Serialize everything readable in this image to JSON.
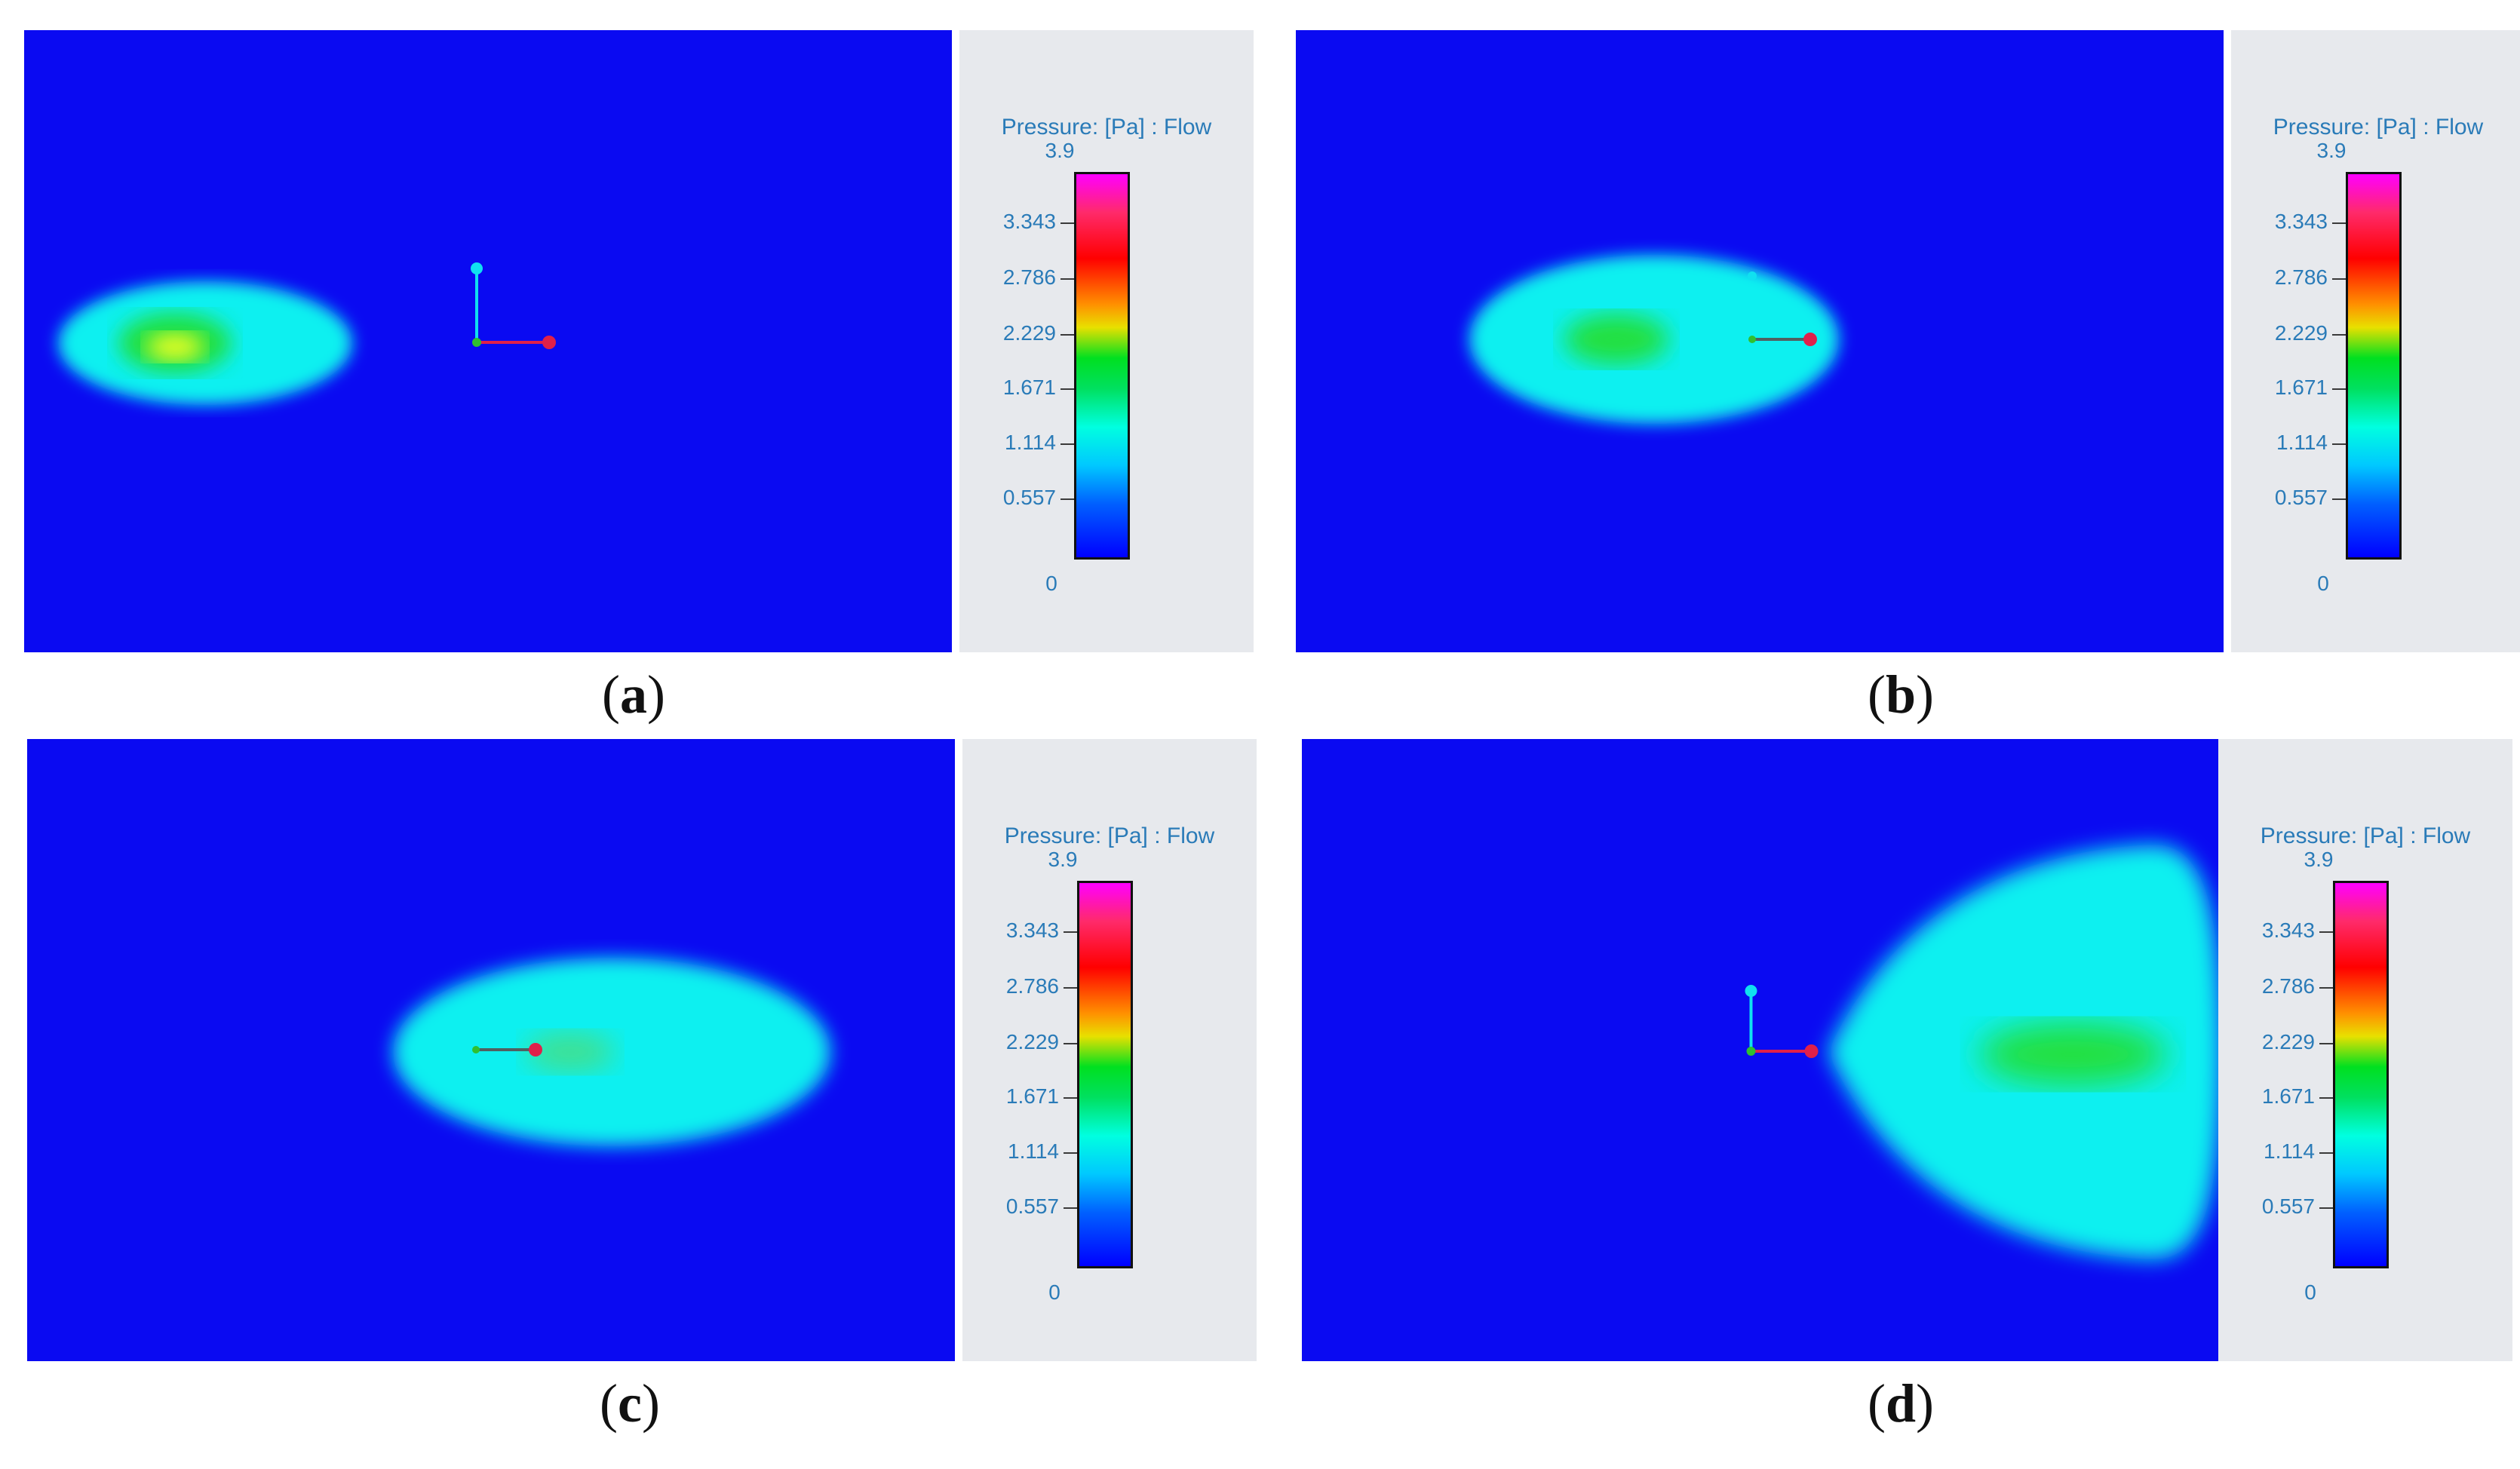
{
  "legend": {
    "title": "Pressure: [Pa] : Flow",
    "max": "3.9",
    "ticks": [
      "3.343",
      "2.786",
      "2.229",
      "1.671",
      "1.114",
      "0.557"
    ],
    "min": "0"
  },
  "panels": [
    {
      "label": "a"
    },
    {
      "label": "b"
    },
    {
      "label": "c"
    },
    {
      "label": "d"
    }
  ],
  "colors": {
    "background": "#0a0af2",
    "cyan": "#10f0f0",
    "green": "#20e040",
    "yellow": "#e8ff30",
    "axis_x": "#e0204a",
    "axis_y": "#10e0f0"
  }
}
